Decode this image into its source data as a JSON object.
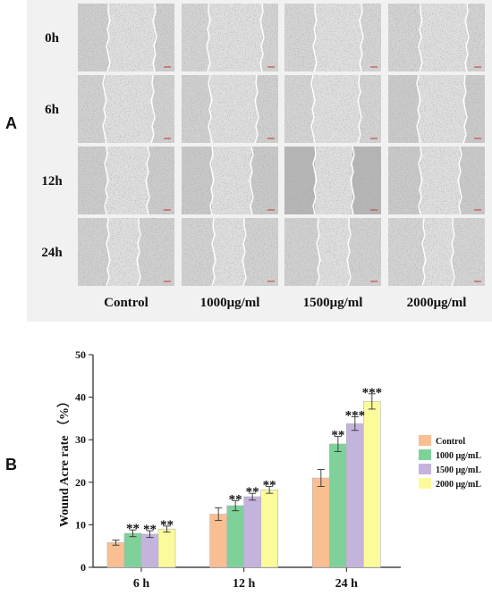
{
  "panel_a": {
    "letter": "A",
    "time_labels": [
      "0h",
      "6h",
      "12h",
      "24h"
    ],
    "group_labels": [
      "Control",
      "1000μg/ml",
      "1500μg/ml",
      "2000μg/ml"
    ]
  },
  "panel_b": {
    "letter": "B"
  },
  "chart_data": {
    "type": "bar",
    "title": "",
    "xlabel": "",
    "ylabel": "Wound Acre rate （%）",
    "categories": [
      "6 h",
      "12 h",
      "24 h"
    ],
    "ylim": [
      0,
      50
    ],
    "yticks": [
      0,
      10,
      20,
      30,
      40,
      50
    ],
    "grid": false,
    "legend_position": "right",
    "series": [
      {
        "name": "Control",
        "color": "#f9bf93",
        "values": [
          5.8,
          12.5,
          21.0
        ],
        "errors": [
          0.6,
          1.5,
          2.0
        ],
        "annotations": [
          "",
          "",
          ""
        ]
      },
      {
        "name": "1000 μg/mL",
        "color": "#7fd19a",
        "values": [
          8.0,
          14.5,
          29.0
        ],
        "errors": [
          0.8,
          1.2,
          1.8
        ],
        "annotations": [
          "**",
          "**",
          "**"
        ]
      },
      {
        "name": "1500 μg/mL",
        "color": "#c4b3dd",
        "values": [
          7.8,
          16.6,
          33.8
        ],
        "errors": [
          0.8,
          0.8,
          1.6
        ],
        "annotations": [
          "**",
          "**",
          "***"
        ]
      },
      {
        "name": "2000 μg/mL",
        "color": "#fbfb9b",
        "values": [
          9.0,
          18.2,
          39.0
        ],
        "errors": [
          0.7,
          0.8,
          1.8
        ],
        "annotations": [
          "**",
          "**",
          "***"
        ]
      }
    ]
  }
}
